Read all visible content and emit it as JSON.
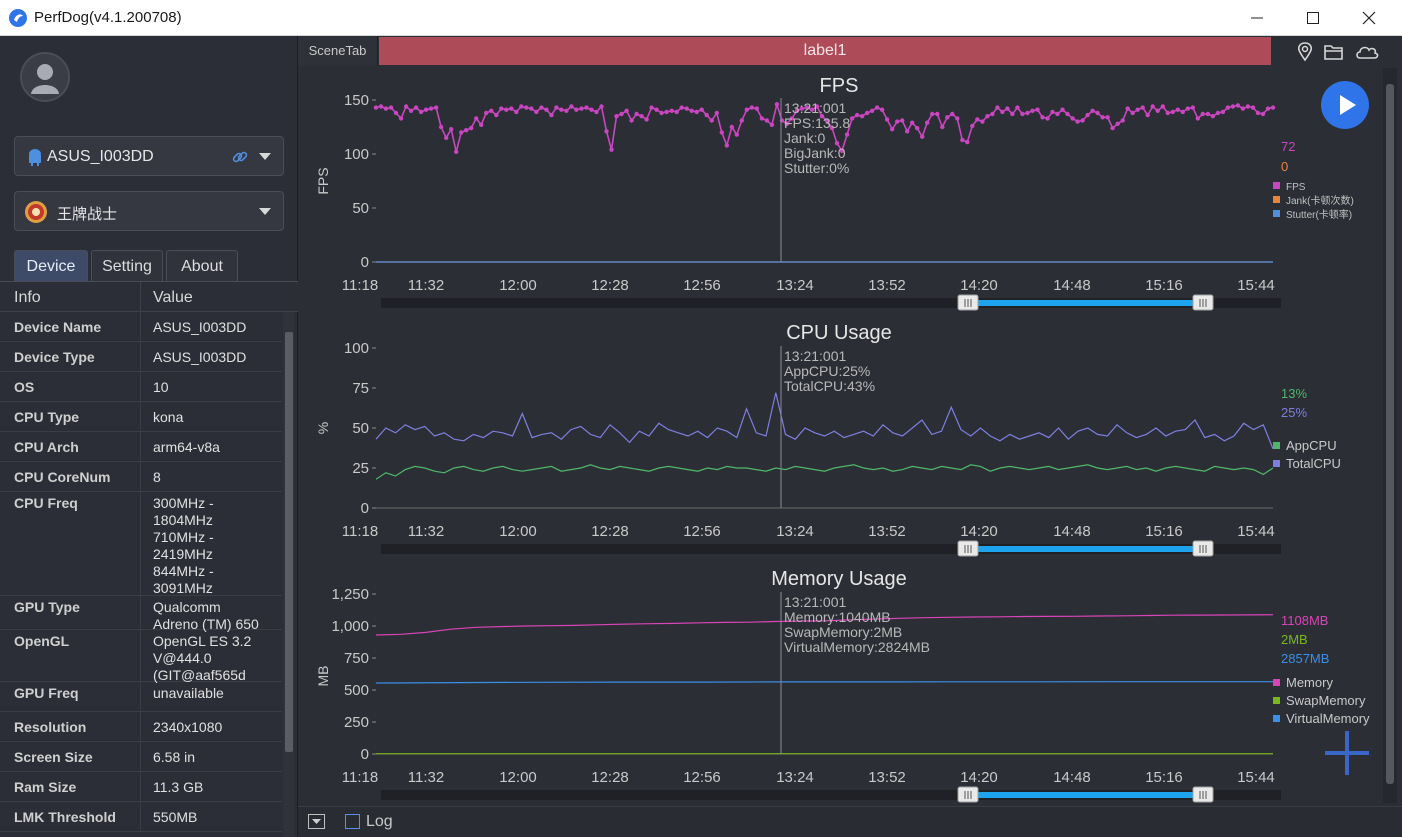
{
  "window": {
    "title": "PerfDog(v4.1.200708)"
  },
  "sidebar": {
    "device_select": {
      "label": "ASUS_I003DD"
    },
    "app_select": {
      "label": "王牌战士"
    },
    "tabs": [
      {
        "label": "Device"
      },
      {
        "label": "Setting"
      },
      {
        "label": "About"
      }
    ],
    "info_header": {
      "key": "Info",
      "value": "Value"
    },
    "info_rows": [
      {
        "key": "Device Name",
        "value": "ASUS_I003DD"
      },
      {
        "key": "Device Type",
        "value": "ASUS_I003DD"
      },
      {
        "key": "OS",
        "value": "10"
      },
      {
        "key": "CPU Type",
        "value": "kona"
      },
      {
        "key": "CPU Arch",
        "value": "arm64-v8a"
      },
      {
        "key": "CPU CoreNum",
        "value": "8"
      },
      {
        "key": "CPU Freq",
        "value": "300MHz -\n1804MHz\n710MHz -\n2419MHz\n844MHz -\n3091MHz"
      },
      {
        "key": "GPU Type",
        "value": "Qualcomm\nAdreno (TM) 650"
      },
      {
        "key": "OpenGL",
        "value": "OpenGL ES 3.2\nV@444.0\n(GIT@aaf565d"
      },
      {
        "key": "GPU Freq",
        "value": "unavailable"
      },
      {
        "key": "Resolution",
        "value": "2340x1080"
      },
      {
        "key": "Screen Size",
        "value": "6.58 in"
      },
      {
        "key": "Ram Size",
        "value": "11.3 GB"
      },
      {
        "key": "LMK Threshold",
        "value": "550MB"
      }
    ]
  },
  "main": {
    "scene_tab": "SceneTab",
    "label_bar": "label1",
    "bottom": {
      "log_label": "Log"
    }
  },
  "colors": {
    "fps": "#c946c0",
    "jank": "#e8853a",
    "stutter": "#4e8fe0",
    "app_cpu": "#4fb868",
    "total_cpu": "#7d7fe0",
    "memory": "#d944b8",
    "swap_memory": "#79b81c",
    "virtual_memory": "#3a8fe8",
    "label_bar": "#ad4b58",
    "play_button": "#2f74e8"
  },
  "icons": [
    "location-icon",
    "folder-icon",
    "cloud-icon",
    "android-icon",
    "link-icon",
    "play-icon",
    "add-icon",
    "minimize-icon",
    "maximize-icon",
    "close-icon"
  ],
  "chart_data": [
    {
      "type": "line",
      "title": "FPS",
      "ylabel": "FPS",
      "ylim": [
        0,
        150
      ],
      "yticks": [
        "0",
        "50",
        "100",
        "150"
      ],
      "xticks": [
        "11:18",
        "11:32",
        "12:00",
        "12:28",
        "12:56",
        "13:24",
        "13:52",
        "14:20",
        "14:48",
        "15:16",
        "15:44"
      ],
      "cursor": {
        "time": "13:21:001",
        "lines": [
          "13:21:001",
          "FPS:135.8",
          "Jank:0",
          "BigJank:0",
          "Stutter:0%"
        ]
      },
      "current_values": [
        "72",
        "0"
      ],
      "legend": [
        "FPS",
        "Jank(卡顿次数)",
        "Stutter(卡顿率)"
      ],
      "series": [
        {
          "name": "FPS",
          "values": [
            143,
            144,
            142,
            143,
            138,
            133,
            144,
            140,
            143,
            139,
            141,
            142,
            143,
            125,
            115,
            123,
            102,
            120,
            122,
            124,
            133,
            127,
            138,
            140,
            136,
            142,
            141,
            142,
            139,
            144,
            143,
            142,
            139,
            143,
            141,
            136,
            143,
            141,
            140,
            144,
            141,
            142,
            143,
            141,
            139,
            144,
            121,
            104,
            135,
            137,
            140,
            131,
            137,
            135,
            132,
            143,
            141,
            138,
            139,
            140,
            139,
            143,
            142,
            140,
            139,
            141,
            136,
            131,
            138,
            120,
            108,
            125,
            118,
            131,
            141,
            143,
            142,
            133,
            131,
            127,
            146,
            131,
            128,
            133,
            140,
            142,
            143,
            141,
            144,
            135,
            131,
            124,
            110,
            103,
            118,
            133,
            136,
            135,
            138,
            140,
            143,
            141,
            132,
            123,
            130,
            131,
            121,
            129,
            124,
            116,
            129,
            137,
            137,
            125,
            134,
            137,
            133,
            113,
            111,
            126,
            132,
            130,
            135,
            137,
            143,
            139,
            142,
            137,
            143,
            137,
            138,
            140,
            141,
            134,
            133,
            139,
            137,
            141,
            137,
            133,
            130,
            131,
            136,
            140,
            138,
            134,
            134,
            124,
            128,
            131,
            142,
            138,
            141,
            143,
            136,
            144,
            140,
            144,
            138,
            139,
            141,
            139,
            142,
            143,
            133,
            137,
            137,
            135,
            138,
            139,
            143,
            144,
            145,
            142,
            144,
            143,
            138,
            137,
            142,
            143
          ]
        },
        {
          "name": "Jank",
          "values": [
            0,
            0,
            0,
            0,
            0,
            0,
            0,
            0,
            0,
            0,
            0,
            0,
            0,
            0,
            0,
            0,
            0,
            0,
            0,
            0,
            0,
            0,
            0,
            0,
            0,
            0,
            0,
            0,
            0,
            0,
            0,
            0,
            0,
            0,
            0,
            0,
            0,
            0,
            0,
            0,
            0,
            0,
            0,
            0,
            0,
            0,
            0,
            0,
            0,
            0
          ]
        },
        {
          "name": "Stutter",
          "values": [
            0,
            0,
            0,
            0,
            0,
            0,
            0,
            0,
            0,
            0,
            0,
            0,
            0,
            0,
            0,
            0,
            0,
            0,
            0,
            0,
            0,
            0,
            0,
            0,
            0,
            0,
            0,
            0,
            0,
            0,
            0,
            0,
            0,
            0,
            0,
            0,
            0,
            0,
            0,
            0,
            0,
            0,
            0,
            0,
            0,
            0,
            0,
            0,
            0,
            0
          ]
        }
      ]
    },
    {
      "type": "line",
      "title": "CPU Usage",
      "ylabel": "%",
      "ylim": [
        0,
        100
      ],
      "yticks": [
        "0",
        "25",
        "50",
        "75",
        "100"
      ],
      "xticks": [
        "11:18",
        "11:32",
        "12:00",
        "12:28",
        "12:56",
        "13:24",
        "13:52",
        "14:20",
        "14:48",
        "15:16",
        "15:44"
      ],
      "cursor": {
        "time": "13:21:001",
        "lines": [
          "13:21:001",
          "AppCPU:25%",
          "TotalCPU:43%"
        ]
      },
      "current_values": [
        "13%",
        "25%"
      ],
      "legend": [
        "AppCPU",
        "TotalCPU"
      ],
      "series": [
        {
          "name": "AppCPU",
          "values": [
            18,
            22,
            20,
            24,
            26,
            25,
            23,
            22,
            25,
            26,
            24,
            23,
            25,
            26,
            24,
            23,
            24,
            25,
            26,
            23,
            24,
            25,
            27,
            25,
            24,
            26,
            25,
            24,
            23,
            25,
            26,
            25,
            24,
            23,
            25,
            24,
            26,
            25,
            25,
            24,
            23,
            25,
            24,
            26,
            25,
            24,
            23,
            25,
            26,
            27,
            25,
            24,
            25,
            23,
            24,
            26,
            25,
            24,
            26,
            25,
            24,
            27,
            26,
            23,
            25,
            26,
            25,
            24,
            25,
            26,
            24,
            25,
            26,
            27,
            25,
            24,
            25,
            26,
            24,
            25,
            23,
            25,
            26,
            25,
            24,
            23,
            26,
            25,
            24,
            25,
            24,
            21,
            25
          ]
        },
        {
          "name": "TotalCPU",
          "values": [
            43,
            50,
            47,
            52,
            49,
            51,
            45,
            47,
            43,
            42,
            46,
            44,
            48,
            47,
            45,
            59,
            44,
            46,
            47,
            43,
            49,
            51,
            46,
            44,
            52,
            47,
            41,
            48,
            45,
            53,
            49,
            47,
            45,
            48,
            44,
            50,
            48,
            44,
            62,
            47,
            45,
            72,
            46,
            43,
            50,
            47,
            45,
            48,
            44,
            46,
            48,
            45,
            52,
            47,
            45,
            50,
            55,
            46,
            48,
            63,
            49,
            45,
            50,
            45,
            42,
            46,
            43,
            45,
            47,
            44,
            50,
            43,
            48,
            50,
            46,
            45,
            52,
            47,
            44,
            46,
            50,
            45,
            48,
            49,
            55,
            44,
            46,
            42,
            45,
            53,
            49,
            52,
            37
          ]
        }
      ]
    },
    {
      "type": "line",
      "title": "Memory Usage",
      "ylabel": "MB",
      "ylim": [
        0,
        1250
      ],
      "yticks": [
        "0",
        "250",
        "500",
        "750",
        "1,000",
        "1,250"
      ],
      "xticks": [
        "11:18",
        "11:32",
        "12:00",
        "12:28",
        "12:56",
        "13:24",
        "13:52",
        "14:20",
        "14:48",
        "15:16",
        "15:44"
      ],
      "cursor": {
        "time": "13:21:001",
        "lines": [
          "13:21:001",
          "Memory:1040MB",
          "SwapMemory:2MB",
          "VirtualMemory:2824MB"
        ]
      },
      "current_values": [
        "1108MB",
        "2MB",
        "2857MB"
      ],
      "legend": [
        "Memory",
        "SwapMemory",
        "VirtualMemory"
      ],
      "series": [
        {
          "name": "Memory",
          "values": [
            930,
            935,
            950,
            975,
            990,
            995,
            1000,
            1002,
            1005,
            1010,
            1015,
            1018,
            1020,
            1025,
            1028,
            1030,
            1035,
            1038,
            1040,
            1048,
            1055,
            1060,
            1065,
            1068,
            1070,
            1072,
            1074,
            1075,
            1076,
            1078,
            1080,
            1082,
            1084,
            1085,
            1086,
            1087,
            1088
          ]
        },
        {
          "name": "SwapMemory",
          "values": [
            2,
            2,
            2,
            2,
            2,
            2,
            2,
            2,
            2,
            2,
            2,
            2
          ]
        },
        {
          "name": "VirtualMemory",
          "values": [
            555,
            558,
            560,
            562,
            562,
            563,
            563,
            564,
            564,
            565,
            565,
            565
          ]
        }
      ]
    }
  ]
}
